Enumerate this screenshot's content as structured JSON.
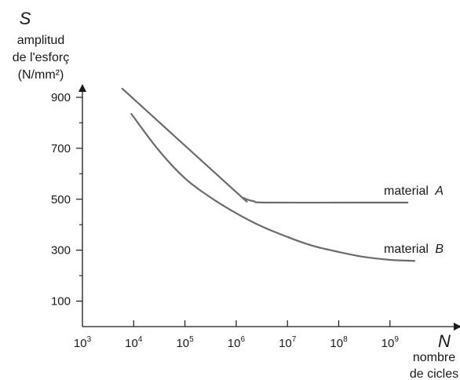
{
  "chart_data": {
    "type": "line",
    "x_scale": "log",
    "x_range": [
      1000,
      10000000000
    ],
    "y_range": [
      0,
      1000
    ],
    "x_ticks": [
      1000,
      10000,
      100000,
      1000000,
      10000000,
      100000000,
      1000000000
    ],
    "x_tick_labels": [
      {
        "base": "10",
        "exp": "3"
      },
      {
        "base": "10",
        "exp": "4"
      },
      {
        "base": "10",
        "exp": "5"
      },
      {
        "base": "10",
        "exp": "6"
      },
      {
        "base": "10",
        "exp": "7"
      },
      {
        "base": "10",
        "exp": "8"
      },
      {
        "base": "10",
        "exp": "9"
      }
    ],
    "y_major_ticks": [
      100,
      300,
      500,
      700,
      900
    ],
    "y_minor_ticks": [
      200,
      400,
      600,
      800
    ],
    "y_tick_labels": [
      "100",
      "300",
      "500",
      "700",
      "900"
    ],
    "y_axis_symbol": "S",
    "y_axis_label_lines": [
      "amplitud",
      "de l'esforç",
      "(N/mm²)"
    ],
    "x_axis_symbol": "N",
    "x_axis_label_lines": [
      "nombre",
      "de cicles"
    ],
    "grid": false,
    "line_color": "#6b6b6b",
    "axis_color": "#1a1a1a",
    "series": [
      {
        "name": "material A",
        "label_prefix": "material",
        "label_letter": "A",
        "points": [
          [
            6000,
            934
          ],
          [
            1000000,
            528
          ],
          [
            1400000,
            505
          ],
          [
            2200000,
            492
          ],
          [
            4000000,
            487
          ],
          [
            300000000,
            487
          ],
          [
            2200000000,
            487
          ]
        ]
      },
      {
        "name": "material B",
        "label_prefix": "material",
        "label_letter": "B",
        "points": [
          [
            9000,
            835
          ],
          [
            30000,
            695
          ],
          [
            100000,
            582
          ],
          [
            300000,
            510
          ],
          [
            1000000,
            445
          ],
          [
            3000000,
            395
          ],
          [
            10000000,
            352
          ],
          [
            30000000,
            318
          ],
          [
            100000000,
            293
          ],
          [
            300000000,
            274
          ],
          [
            1000000000,
            262
          ],
          [
            3000000000,
            258
          ]
        ]
      }
    ]
  }
}
